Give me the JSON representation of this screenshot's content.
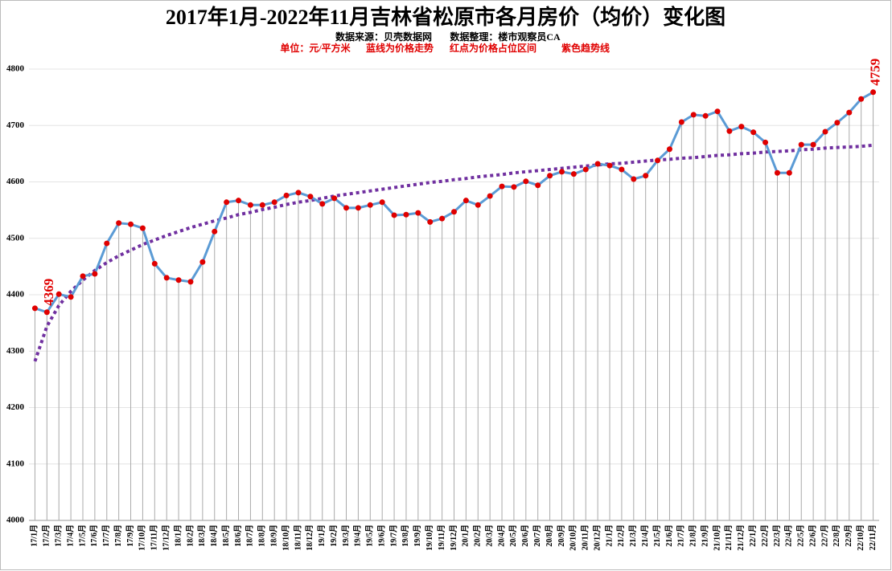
{
  "chart_data": {
    "type": "line",
    "title": "2017年1月-2022年11月吉林省松原市各月房价（均价）变化图",
    "source": "数据来源：贝壳数据网",
    "compiler": "数据整理：楼市观察员CA",
    "notes": [
      "单位：元/平方米",
      "蓝线为价格走势",
      "红点为价格占位区间",
      "紫色趋势线"
    ],
    "categories": [
      "17/1月",
      "17/2月",
      "17/3月",
      "17/4月",
      "17/5月",
      "17/6月",
      "17/7月",
      "17/8月",
      "17/9月",
      "17/10月",
      "17/11月",
      "17/12月",
      "18/1月",
      "18/2月",
      "18/3月",
      "18/4月",
      "18/5月",
      "18/6月",
      "18/7月",
      "18/8月",
      "18/9月",
      "18/10月",
      "18/11月",
      "18/12月",
      "19/1月",
      "19/2月",
      "19/3月",
      "19/4月",
      "19/5月",
      "19/6月",
      "19/7月",
      "19/8月",
      "19/9月",
      "19/10月",
      "19/11月",
      "19/12月",
      "20/1月",
      "20/2月",
      "20/3月",
      "20/4月",
      "20/5月",
      "20/6月",
      "20/7月",
      "20/8月",
      "20/9月",
      "20/10月",
      "20/11月",
      "20/12月",
      "21/1月",
      "21/2月",
      "21/3月",
      "21/4月",
      "21/5月",
      "21/6月",
      "21/7月",
      "21/8月",
      "21/9月",
      "21/10月",
      "21/11月",
      "21/12月",
      "22/1月",
      "22/2月",
      "22/3月",
      "22/4月",
      "22/5月",
      "22/6月",
      "22/7月",
      "22/8月",
      "22/9月",
      "22/10月",
      "22/11月"
    ],
    "price": {
      "color": "#5b9bd5",
      "marker_color": "#e00000",
      "values": [
        4376,
        4369,
        4401,
        4396,
        4433,
        4437,
        4491,
        4527,
        4525,
        4518,
        4455,
        4430,
        4426,
        4423,
        4458,
        4512,
        4564,
        4567,
        4559,
        4559,
        4564,
        4576,
        4581,
        4574,
        4561,
        4571,
        4554,
        4554,
        4559,
        4564,
        4541,
        4542,
        4545,
        4529,
        4535,
        4547,
        4567,
        4559,
        4575,
        4592,
        4591,
        4601,
        4594,
        4611,
        4618,
        4614,
        4622,
        4632,
        4629,
        4622,
        4605,
        4611,
        4638,
        4658,
        4706,
        4719,
        4717,
        4725,
        4690,
        4698,
        4688,
        4670,
        4616,
        4616,
        4666,
        4666,
        4689,
        4705,
        4723,
        4747,
        4759
      ]
    },
    "trend": {
      "color": "#7030a0",
      "values": [
        4282,
        4344,
        4381,
        4406,
        4426,
        4443,
        4457,
        4469,
        4479,
        4489,
        4497,
        4505,
        4512,
        4519,
        4525,
        4531,
        4536,
        4542,
        4546,
        4551,
        4555,
        4560,
        4564,
        4567,
        4571,
        4575,
        4578,
        4581,
        4584,
        4587,
        4590,
        4593,
        4596,
        4599,
        4601,
        4604,
        4606,
        4609,
        4611,
        4613,
        4616,
        4618,
        4620,
        4622,
        4624,
        4626,
        4628,
        4630,
        4632,
        4633,
        4635,
        4637,
        4639,
        4640,
        4642,
        4643,
        4645,
        4647,
        4648,
        4650,
        4651,
        4653,
        4654,
        4655,
        4657,
        4658,
        4660,
        4661,
        4662,
        4663,
        4665
      ]
    },
    "labeled_points": [
      1,
      70
    ],
    "ylim": [
      4000,
      4800
    ],
    "yticks": [
      4000,
      4100,
      4200,
      4300,
      4400,
      4500,
      4600,
      4700,
      4800
    ],
    "grid": true
  }
}
